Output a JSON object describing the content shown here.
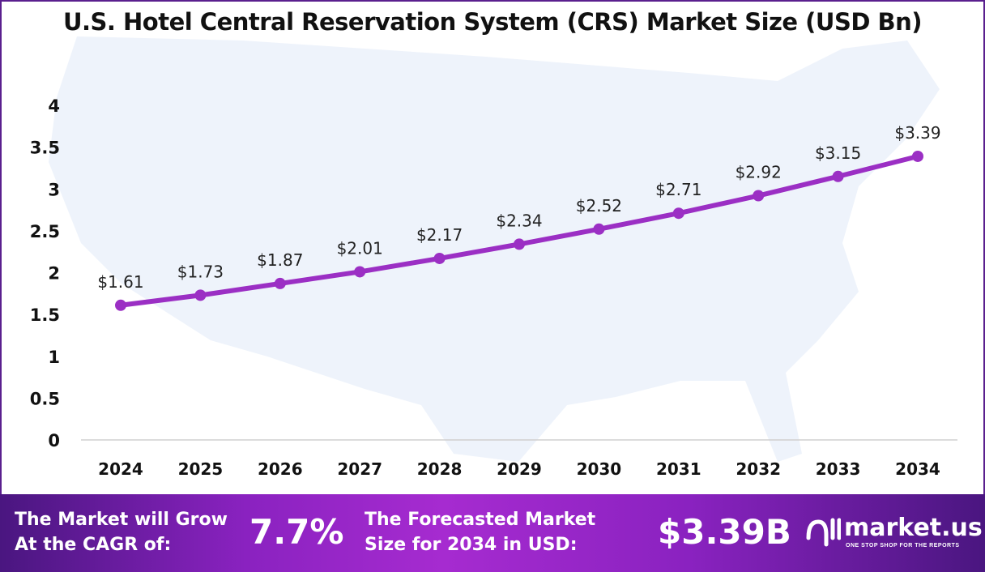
{
  "chart_data": {
    "type": "line",
    "title": "U.S. Hotel Central Reservation System (CRS) Market Size (USD Bn)",
    "categories": [
      "2024",
      "2025",
      "2026",
      "2027",
      "2028",
      "2029",
      "2030",
      "2031",
      "2032",
      "2033",
      "2034"
    ],
    "values": [
      1.61,
      1.73,
      1.87,
      2.01,
      2.17,
      2.34,
      2.52,
      2.71,
      2.92,
      3.15,
      3.39
    ],
    "data_labels": [
      "$1.61",
      "$1.73",
      "$1.87",
      "$2.01",
      "$2.17",
      "$2.34",
      "$2.52",
      "$2.71",
      "$2.92",
      "$3.15",
      "$3.39"
    ],
    "yticks": [
      "0",
      "0.5",
      "1",
      "1.5",
      "2",
      "2.5",
      "3",
      "3.5",
      "4"
    ],
    "ylim": [
      0,
      4
    ],
    "xlabel": "",
    "ylabel": "",
    "grid": false,
    "series_color": "#9b2fc4"
  },
  "footer": {
    "cagr_text_1": "The Market will Grow",
    "cagr_text_2": "At the CAGR of:",
    "cagr_value": "7.7%",
    "forecast_text_1": "The Forecasted Market",
    "forecast_text_2": "Size for 2034 in USD:",
    "forecast_value": "$3.39B",
    "logo_name": "market.us",
    "logo_tagline": "ONE STOP SHOP FOR THE REPORTS"
  }
}
